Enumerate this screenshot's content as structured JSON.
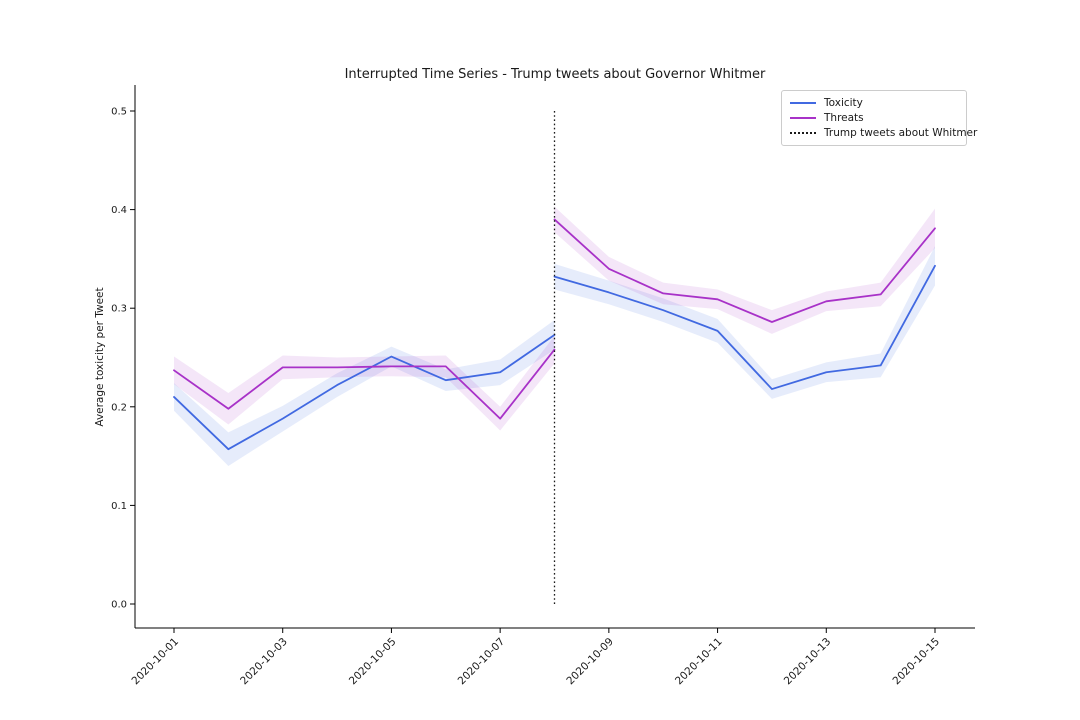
{
  "figure": {
    "background": "#ffffff",
    "text_color": "#1a1a1a",
    "spine_color": "#000000"
  },
  "chart_data": {
    "type": "line",
    "title": "Interrupted Time Series - Trump tweets about Governor Whitmer",
    "xlabel": "",
    "ylabel": "Average toxicity per Tweet",
    "grid": false,
    "legend_position": "upper right",
    "dates": [
      "2020-10-01",
      "2020-10-02",
      "2020-10-03",
      "2020-10-04",
      "2020-10-05",
      "2020-10-06",
      "2020-10-07",
      "2020-10-08",
      "2020-10-09",
      "2020-10-10",
      "2020-10-11",
      "2020-10-12",
      "2020-10-13",
      "2020-10-14",
      "2020-10-15"
    ],
    "x_tick_labels": [
      "2020-10-01",
      "2020-10-03",
      "2020-10-05",
      "2020-10-07",
      "2020-10-09",
      "2020-10-11",
      "2020-10-13",
      "2020-10-15"
    ],
    "y_tick_labels": [
      "0.0",
      "0.1",
      "0.2",
      "0.3",
      "0.4",
      "0.5"
    ],
    "y_ticks": [
      0.0,
      0.1,
      0.2,
      0.3,
      0.4,
      0.5
    ],
    "ylim": [
      -0.024,
      0.526
    ],
    "series": [
      {
        "name": "Toxicity",
        "color": "#4169E1",
        "band_fill": "rgba(65,105,225,0.13)",
        "segments": [
          {
            "dates": [
              "2020-10-01",
              "2020-10-02",
              "2020-10-03",
              "2020-10-04",
              "2020-10-05",
              "2020-10-06",
              "2020-10-07",
              "2020-10-08"
            ],
            "values": [
              0.21,
              0.157,
              0.188,
              0.222,
              0.251,
              0.227,
              0.235,
              0.273
            ],
            "ci_halfwidth": [
              0.014,
              0.017,
              0.013,
              0.012,
              0.01,
              0.011,
              0.013,
              0.015
            ]
          },
          {
            "dates": [
              "2020-10-08",
              "2020-10-09",
              "2020-10-10",
              "2020-10-11",
              "2020-10-12",
              "2020-10-13",
              "2020-10-14",
              "2020-10-15"
            ],
            "values": [
              0.332,
              0.316,
              0.298,
              0.277,
              0.218,
              0.235,
              0.242,
              0.343
            ],
            "ci_halfwidth": [
              0.013,
              0.012,
              0.012,
              0.012,
              0.01,
              0.01,
              0.012,
              0.02
            ]
          }
        ]
      },
      {
        "name": "Threats",
        "color": "#A832C8",
        "band_fill": "rgba(168,50,200,0.12)",
        "segments": [
          {
            "dates": [
              "2020-10-01",
              "2020-10-02",
              "2020-10-03",
              "2020-10-04",
              "2020-10-05",
              "2020-10-06",
              "2020-10-07",
              "2020-10-08"
            ],
            "values": [
              0.237,
              0.198,
              0.24,
              0.24,
              0.241,
              0.241,
              0.188,
              0.258
            ],
            "ci_halfwidth": [
              0.014,
              0.016,
              0.012,
              0.01,
              0.01,
              0.011,
              0.012,
              0.014
            ]
          },
          {
            "dates": [
              "2020-10-08",
              "2020-10-09",
              "2020-10-10",
              "2020-10-11",
              "2020-10-12",
              "2020-10-13",
              "2020-10-14",
              "2020-10-15"
            ],
            "values": [
              0.39,
              0.34,
              0.315,
              0.309,
              0.286,
              0.307,
              0.314,
              0.381
            ],
            "ci_halfwidth": [
              0.013,
              0.012,
              0.011,
              0.01,
              0.012,
              0.01,
              0.012,
              0.02
            ]
          }
        ]
      }
    ],
    "intervention": {
      "date": "2020-10-08",
      "y_from": 0.0,
      "y_to": 0.5,
      "color": "#1a1a1a",
      "style": "dotted"
    },
    "legend": {
      "entries": [
        {
          "label": "Toxicity",
          "color": "#4169E1",
          "style": "solid"
        },
        {
          "label": "Threats",
          "color": "#A832C8",
          "style": "solid"
        },
        {
          "label": "Trump tweets about Whitmer",
          "color": "#1a1a1a",
          "style": "dotted"
        }
      ]
    }
  }
}
